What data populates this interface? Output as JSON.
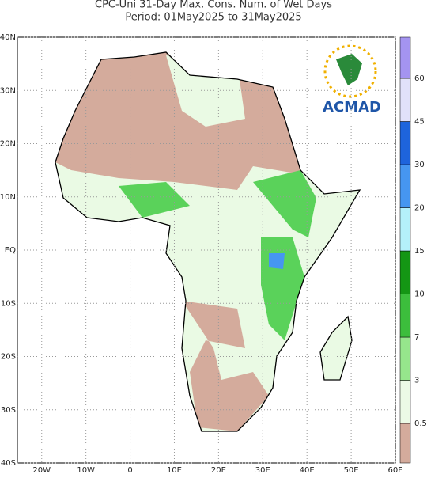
{
  "title": "CPC-Uni 31-Day Max. Cons. Num. of Wet Days",
  "subtitle": "Period: 01May2025 to 31May2025",
  "map": {
    "lonlim": [
      -25.5,
      60
    ],
    "latlim": [
      -40,
      40
    ],
    "lon_ticks": [
      {
        "value": -20,
        "label": "20W"
      },
      {
        "value": -10,
        "label": "10W"
      },
      0,
      {
        "value": 10,
        "label": "10E"
      },
      {
        "value": 20,
        "label": "20E"
      },
      {
        "value": 30,
        "label": "30E"
      },
      {
        "value": 40,
        "label": "40E"
      },
      {
        "value": 50,
        "label": "50E"
      },
      {
        "value": 60,
        "label": "60E"
      }
    ],
    "lat_ticks": [
      {
        "value": 40,
        "label": "40N"
      },
      {
        "value": 30,
        "label": "30N"
      },
      {
        "value": 20,
        "label": "20N"
      },
      {
        "value": 10,
        "label": "10N"
      },
      {
        "value": 0,
        "label": "EQ"
      },
      {
        "value": -10,
        "label": "10S"
      },
      {
        "value": -20,
        "label": "20S"
      },
      {
        "value": -30,
        "label": "30S"
      },
      {
        "value": -40,
        "label": "40S"
      }
    ]
  },
  "colorbar": {
    "levels": [
      0.5,
      3,
      7,
      10,
      15,
      20,
      30,
      45,
      60
    ],
    "colors": [
      "#d4ab9c",
      "#ecfae6",
      "#96e68c",
      "#3cbe3c",
      "#149614",
      "#b4f0fa",
      "#4696f0",
      "#1e64dc",
      "#e1e1fa",
      "#a494f0",
      "#7860e6"
    ]
  },
  "logo": {
    "text": "ACMAD"
  }
}
